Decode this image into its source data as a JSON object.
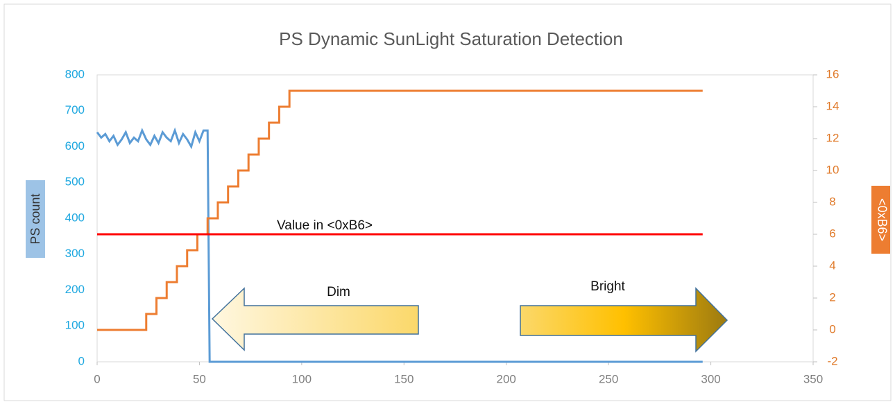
{
  "chart_data": {
    "type": "line",
    "title": "PS Dynamic SunLight Saturation Detection",
    "y_label": "PS count",
    "y2_label": "<0xB6>",
    "xlim": [
      0,
      350
    ],
    "xticks": [
      0,
      50,
      100,
      150,
      200,
      250,
      300,
      350
    ],
    "ylim": [
      0,
      800
    ],
    "yticks": [
      0,
      100,
      200,
      300,
      400,
      500,
      600,
      700,
      800
    ],
    "y2lim": [
      -2,
      16
    ],
    "y2ticks": [
      -2,
      0,
      2,
      4,
      6,
      8,
      10,
      12,
      14,
      16
    ],
    "grid": false,
    "series": [
      {
        "name": "PS count",
        "color": "#5b9bd5",
        "axis": "y",
        "x": [
          0,
          2,
          4,
          6,
          8,
          10,
          12,
          14,
          16,
          18,
          20,
          22,
          24,
          26,
          28,
          30,
          32,
          34,
          36,
          38,
          40,
          42,
          44,
          46,
          48,
          50,
          52,
          54,
          55,
          296
        ],
        "values": [
          640,
          625,
          635,
          615,
          630,
          605,
          620,
          640,
          610,
          625,
          615,
          645,
          620,
          605,
          630,
          610,
          640,
          625,
          615,
          645,
          610,
          635,
          620,
          600,
          640,
          615,
          645,
          645,
          0,
          0
        ]
      },
      {
        "name": "<0xB6>",
        "color": "#ed7d31",
        "axis": "y2",
        "x": [
          0,
          24,
          24,
          29,
          29,
          34,
          34,
          39,
          39,
          44,
          44,
          49,
          49,
          54,
          54,
          59,
          59,
          64,
          64,
          69,
          69,
          74,
          74,
          79,
          79,
          84,
          84,
          89,
          89,
          94,
          94,
          296
        ],
        "values": [
          0,
          0,
          1,
          1,
          2,
          2,
          3,
          3,
          4,
          4,
          5,
          5,
          6,
          6,
          7,
          7,
          8,
          8,
          9,
          9,
          10,
          10,
          11,
          11,
          12,
          12,
          13,
          13,
          14,
          14,
          15,
          15
        ]
      },
      {
        "name": "Value in <0xB6>",
        "color": "#ff0000",
        "axis": "y2",
        "x": [
          0,
          296
        ],
        "values": [
          6,
          6
        ]
      }
    ],
    "annotations": [
      "Value in <0xB6>",
      "Dim",
      "Bright"
    ]
  }
}
